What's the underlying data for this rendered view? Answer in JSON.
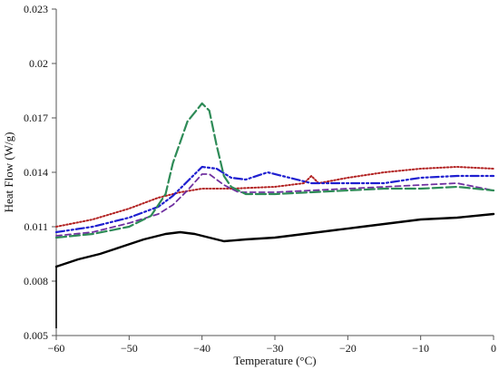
{
  "chart_data": {
    "type": "line",
    "title": "",
    "xlabel": "Temperature (°C)",
    "ylabel": "Heat Flow (W/g)",
    "xlim": [
      -60,
      0
    ],
    "ylim": [
      0.005,
      0.023
    ],
    "x_ticks": [
      -60,
      -50,
      -40,
      -30,
      -20,
      -10,
      0
    ],
    "x_tick_labels": [
      "−60",
      "−50",
      "−40",
      "−30",
      "−20",
      "−10",
      "0"
    ],
    "y_ticks": [
      0.005,
      0.008,
      0.011,
      0.014,
      0.017,
      0.02,
      0.023
    ],
    "y_tick_labels": [
      "0.005",
      "0.008",
      "0.011",
      "0.014",
      "0.017",
      "0.02",
      "0.023"
    ],
    "grid": false,
    "legend": "none",
    "series": [
      {
        "line_style": "solid",
        "color": "#000000",
        "points": [
          [
            -60,
            0.0088
          ],
          [
            -57,
            0.0092
          ],
          [
            -54,
            0.0095
          ],
          [
            -51,
            0.0099
          ],
          [
            -48,
            0.0103
          ],
          [
            -45,
            0.0106
          ],
          [
            -43,
            0.0107
          ],
          [
            -41,
            0.0106
          ],
          [
            -39,
            0.0104
          ],
          [
            -37,
            0.0102
          ],
          [
            -34,
            0.0103
          ],
          [
            -30,
            0.0104
          ],
          [
            -26,
            0.0106
          ],
          [
            -22,
            0.0108
          ],
          [
            -18,
            0.011
          ],
          [
            -14,
            0.0112
          ],
          [
            -10,
            0.0114
          ],
          [
            -5,
            0.0115
          ],
          [
            0,
            0.0117
          ]
        ]
      },
      {
        "line_style": "dotted",
        "color": "#b22222",
        "points": [
          [
            -60,
            0.011
          ],
          [
            -55,
            0.0114
          ],
          [
            -50,
            0.012
          ],
          [
            -46,
            0.0126
          ],
          [
            -43,
            0.0129
          ],
          [
            -40,
            0.0131
          ],
          [
            -36,
            0.0131
          ],
          [
            -30,
            0.0132
          ],
          [
            -26,
            0.0134
          ],
          [
            -25,
            0.0138
          ],
          [
            -24,
            0.0134
          ],
          [
            -20,
            0.0137
          ],
          [
            -15,
            0.014
          ],
          [
            -10,
            0.0142
          ],
          [
            -5,
            0.0143
          ],
          [
            0,
            0.0142
          ]
        ]
      },
      {
        "line_style": "dash-dot-dot",
        "color": "#1f1fd0",
        "points": [
          [
            -60,
            0.0107
          ],
          [
            -55,
            0.011
          ],
          [
            -50,
            0.0115
          ],
          [
            -46,
            0.0121
          ],
          [
            -44,
            0.0127
          ],
          [
            -42,
            0.0135
          ],
          [
            -40,
            0.0143
          ],
          [
            -38,
            0.0142
          ],
          [
            -36,
            0.0137
          ],
          [
            -34,
            0.0136
          ],
          [
            -31,
            0.014
          ],
          [
            -28,
            0.0137
          ],
          [
            -25,
            0.0134
          ],
          [
            -20,
            0.0134
          ],
          [
            -15,
            0.0134
          ],
          [
            -10,
            0.0137
          ],
          [
            -5,
            0.0138
          ],
          [
            0,
            0.0138
          ]
        ]
      },
      {
        "line_style": "dashed",
        "color": "#7030a0",
        "points": [
          [
            -60,
            0.0105
          ],
          [
            -55,
            0.0107
          ],
          [
            -50,
            0.0112
          ],
          [
            -46,
            0.0117
          ],
          [
            -44,
            0.0122
          ],
          [
            -42,
            0.013
          ],
          [
            -40,
            0.0139
          ],
          [
            -39,
            0.0139
          ],
          [
            -37,
            0.0133
          ],
          [
            -35,
            0.0129
          ],
          [
            -30,
            0.0129
          ],
          [
            -25,
            0.013
          ],
          [
            -20,
            0.0131
          ],
          [
            -15,
            0.0132
          ],
          [
            -10,
            0.0133
          ],
          [
            -5,
            0.0134
          ],
          [
            0,
            0.013
          ]
        ]
      },
      {
        "line_style": "long-dash",
        "color": "#2e8b57",
        "points": [
          [
            -60,
            0.0104
          ],
          [
            -55,
            0.0106
          ],
          [
            -50,
            0.011
          ],
          [
            -47,
            0.0116
          ],
          [
            -45,
            0.0128
          ],
          [
            -44,
            0.0145
          ],
          [
            -42,
            0.0168
          ],
          [
            -40,
            0.0178
          ],
          [
            -39,
            0.0174
          ],
          [
            -38,
            0.0155
          ],
          [
            -37,
            0.0138
          ],
          [
            -36,
            0.0132
          ],
          [
            -34,
            0.0128
          ],
          [
            -30,
            0.0128
          ],
          [
            -25,
            0.0129
          ],
          [
            -20,
            0.013
          ],
          [
            -15,
            0.0131
          ],
          [
            -10,
            0.0131
          ],
          [
            -5,
            0.0132
          ],
          [
            0,
            0.013
          ]
        ]
      }
    ]
  }
}
